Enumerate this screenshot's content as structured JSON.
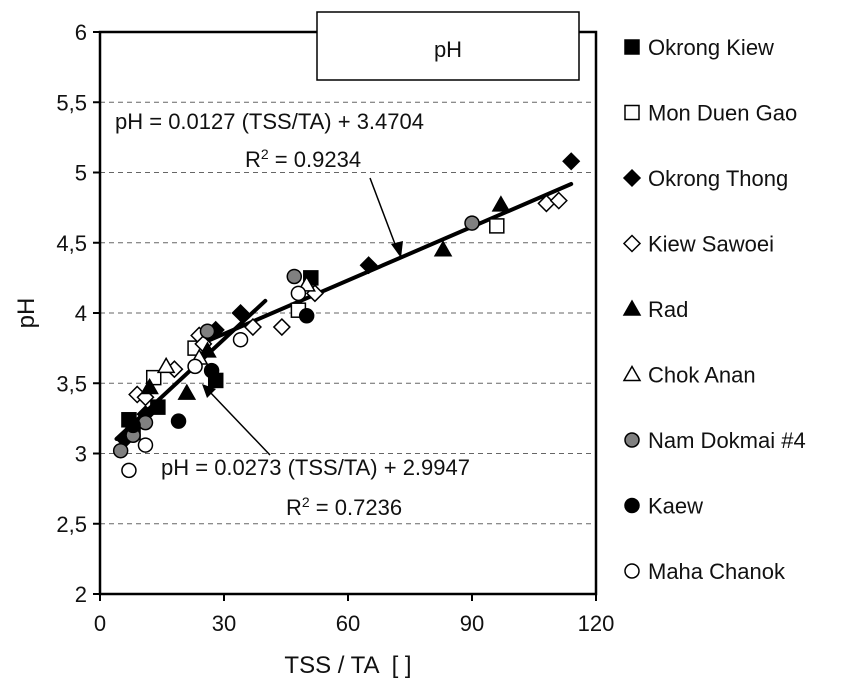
{
  "chart_data": {
    "type": "scatter",
    "title_box": "pH",
    "xlabel": "TSS / TA  [ ]",
    "ylabel": "pH",
    "xlim": [
      0,
      120
    ],
    "ylim": [
      2,
      6
    ],
    "x_ticks": [
      "0",
      "30",
      "60",
      "90",
      "120"
    ],
    "y_ticks": [
      "2",
      "2,5",
      "3",
      "3,5",
      "4",
      "4,5",
      "5",
      "5,5",
      "6"
    ],
    "grid": "horizontal dashed",
    "legend_position": "right",
    "series": [
      {
        "name": "Okrong Kiew",
        "marker": "square-filled",
        "points": [
          [
            7,
            3.24
          ],
          [
            8,
            3.15
          ],
          [
            14,
            3.33
          ],
          [
            28,
            3.52
          ],
          [
            51,
            4.25
          ]
        ]
      },
      {
        "name": "Mon Duen Gao",
        "marker": "square-open",
        "points": [
          [
            13,
            3.54
          ],
          [
            23,
            3.75
          ],
          [
            48,
            4.02
          ],
          [
            96,
            4.62
          ]
        ]
      },
      {
        "name": "Okrong Thong",
        "marker": "diamond-filled",
        "points": [
          [
            6,
            3.1
          ],
          [
            11,
            3.28
          ],
          [
            28,
            3.88
          ],
          [
            34,
            4.0
          ],
          [
            65,
            4.34
          ],
          [
            114,
            5.08
          ]
        ]
      },
      {
        "name": "Kiew Sawoei",
        "marker": "diamond-open",
        "points": [
          [
            9,
            3.42
          ],
          [
            11,
            3.4
          ],
          [
            18,
            3.6
          ],
          [
            24,
            3.84
          ],
          [
            25,
            3.78
          ],
          [
            37,
            3.9
          ],
          [
            44,
            3.9
          ],
          [
            52,
            4.14
          ],
          [
            108,
            4.78
          ],
          [
            111,
            4.8
          ]
        ]
      },
      {
        "name": "Rad",
        "marker": "triangle-filled",
        "points": [
          [
            12,
            3.47
          ],
          [
            21,
            3.43
          ],
          [
            26,
            3.73
          ],
          [
            83,
            4.45
          ],
          [
            97,
            4.77
          ]
        ]
      },
      {
        "name": "Chok Anan",
        "marker": "triangle-open",
        "points": [
          [
            16,
            3.62
          ],
          [
            24,
            3.68
          ],
          [
            50,
            4.2
          ]
        ]
      },
      {
        "name": "Nam Dokmai #4",
        "marker": "circle-gray",
        "points": [
          [
            5,
            3.02
          ],
          [
            8,
            3.13
          ],
          [
            11,
            3.22
          ],
          [
            26,
            3.87
          ],
          [
            47,
            4.26
          ],
          [
            90,
            4.64
          ]
        ]
      },
      {
        "name": "Kaew",
        "marker": "circle-filled",
        "points": [
          [
            8,
            3.2
          ],
          [
            19,
            3.23
          ],
          [
            27,
            3.59
          ],
          [
            50,
            3.98
          ]
        ]
      },
      {
        "name": "Maha Chanok",
        "marker": "circle-open",
        "points": [
          [
            7,
            2.88
          ],
          [
            11,
            3.06
          ],
          [
            23,
            3.62
          ],
          [
            34,
            3.81
          ],
          [
            48,
            4.14
          ]
        ]
      }
    ],
    "fits": [
      {
        "equation": "pH = 0.0273 (TSS/TA) + 2.9947",
        "r2_prefix": "R",
        "r2_sup": "2",
        "r2_suffix": " = 0.7236",
        "x_range": [
          4,
          40
        ]
      },
      {
        "equation": "pH = 0.0127 (TSS/TA) + 3.4704",
        "r2_prefix": "R",
        "r2_sup": "2",
        "r2_suffix": " = 0.9234",
        "x_range": [
          22,
          114
        ]
      }
    ]
  }
}
